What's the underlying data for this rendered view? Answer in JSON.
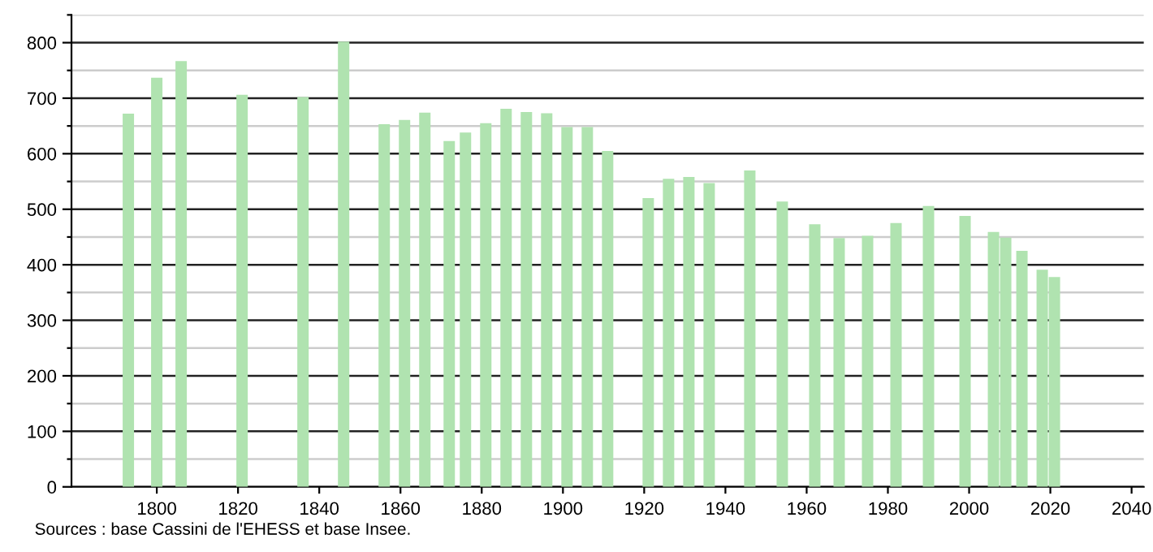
{
  "chart_data": {
    "type": "bar",
    "x": [
      1793,
      1800,
      1806,
      1821,
      1836,
      1846,
      1856,
      1861,
      1866,
      1872,
      1876,
      1881,
      1886,
      1891,
      1896,
      1901,
      1906,
      1911,
      1921,
      1926,
      1931,
      1936,
      1946,
      1954,
      1962,
      1968,
      1975,
      1982,
      1990,
      1999,
      2006,
      2009,
      2013,
      2018,
      2021
    ],
    "values": [
      672,
      737,
      767,
      706,
      702,
      802,
      653,
      661,
      674,
      623,
      638,
      655,
      681,
      675,
      673,
      648,
      648,
      605,
      520,
      555,
      558,
      547,
      570,
      514,
      473,
      448,
      452,
      475,
      506,
      488,
      459,
      449,
      425,
      391,
      378
    ],
    "color": "#b0e3b0",
    "xlim": [
      1779,
      2043
    ],
    "xticks": [
      1800,
      1820,
      1840,
      1860,
      1880,
      1900,
      1920,
      1940,
      1960,
      1980,
      2000,
      2020,
      2040
    ],
    "ylim": [
      0,
      850
    ],
    "yticks": [
      0,
      {
        "value": 50,
        "label": null
      },
      100,
      {
        "value": 150,
        "label": null
      },
      200,
      {
        "value": 250,
        "label": null
      },
      300,
      {
        "value": 350,
        "label": null
      },
      400,
      {
        "value": 450,
        "label": null
      },
      500,
      {
        "value": 550,
        "label": null
      },
      600,
      {
        "value": 650,
        "label": null
      },
      700,
      {
        "value": 750,
        "label": null
      },
      800,
      {
        "value": 850,
        "label": null
      }
    ],
    "grid": "y",
    "annotations": [
      "Sources : base Cassini de l'EHESS et base Insee."
    ]
  }
}
